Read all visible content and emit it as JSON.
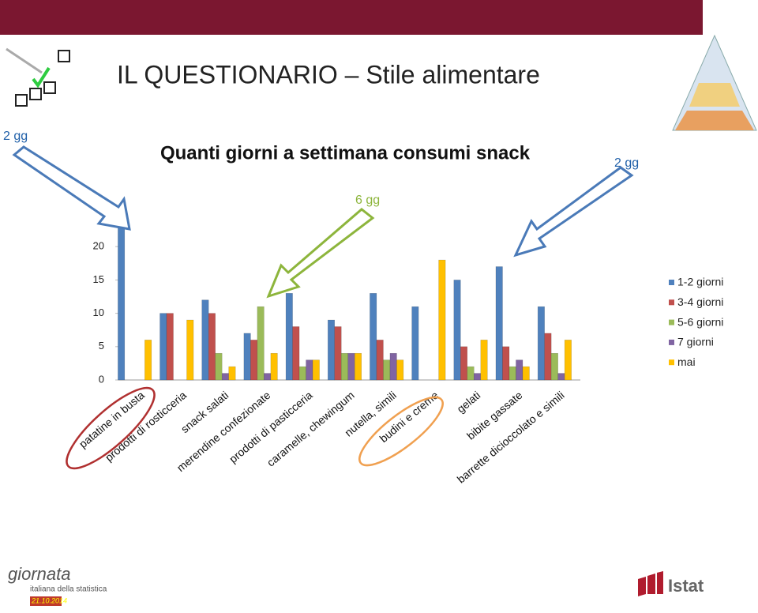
{
  "slide_title": "IL QUESTIONARIO – Stile alimentare",
  "logos": {
    "event": "giornata",
    "event_sub": "italiana della statistica",
    "date": "21.10.2014",
    "brand": "Istat"
  },
  "chart_data": {
    "type": "bar",
    "title": "Quanti giorni a settimana consumi snack",
    "annotations": [
      "2 gg",
      "6 gg",
      "2 gg"
    ],
    "categories": [
      "patatine in busta",
      "prodotti di rosticceria",
      "snack salati",
      "merendine confezionate",
      "prodotti di pasticceria",
      "caramelle, chewingum",
      "nutella, simili",
      "budini e creme",
      "gelati",
      "bibite gassate",
      "barrette dicioccolato e simili"
    ],
    "series": [
      {
        "name": "1-2 giorni",
        "color": "#4f81bd",
        "values": [
          23,
          10,
          12,
          7,
          13,
          9,
          13,
          11,
          15,
          17,
          11
        ]
      },
      {
        "name": "3-4 giorni",
        "color": "#c0504d",
        "values": [
          0,
          10,
          10,
          6,
          8,
          8,
          6,
          0,
          5,
          5,
          7
        ]
      },
      {
        "name": "5-6 giorni",
        "color": "#9bbb59",
        "values": [
          0,
          0,
          4,
          11,
          2,
          4,
          3,
          0,
          2,
          2,
          4
        ]
      },
      {
        "name": "7 giorni",
        "color": "#8064a2",
        "values": [
          0,
          0,
          1,
          1,
          3,
          4,
          4,
          0,
          1,
          3,
          1
        ]
      },
      {
        "name": "mai",
        "color": "#ffc000",
        "values": [
          6,
          9,
          2,
          4,
          3,
          4,
          3,
          18,
          6,
          2,
          6
        ]
      }
    ],
    "ylim": [
      0,
      25
    ],
    "yticks": [
      0,
      5,
      10,
      15,
      20
    ],
    "grid": false,
    "legend": "right"
  }
}
